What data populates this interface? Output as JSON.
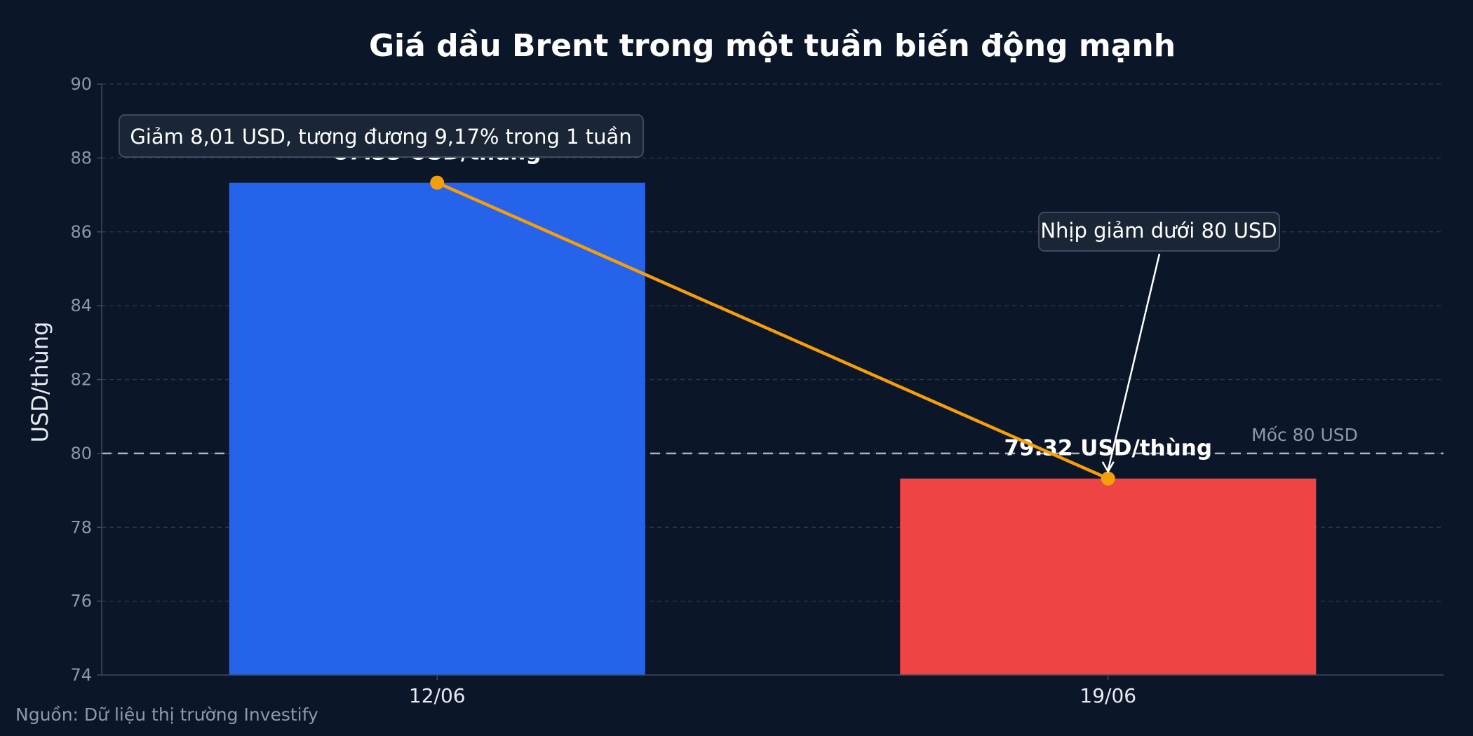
{
  "chart_data": {
    "type": "bar",
    "title": "Giá dầu Brent trong một tuần biến động mạnh",
    "ylabel": "USD/thùng",
    "xlabel": "",
    "categories": [
      "12/06",
      "19/06"
    ],
    "values": [
      87.33,
      79.32
    ],
    "bar_colors": [
      "#2563eb",
      "#ef4444"
    ],
    "value_labels": [
      "87.33 USD/thùng",
      "79.32 USD/thùng"
    ],
    "ylim": [
      74,
      90
    ],
    "yticks": [
      74,
      76,
      78,
      80,
      82,
      84,
      86,
      88,
      90
    ],
    "grid": true,
    "trend_line": {
      "color": "#f59e0b",
      "values": [
        87.33,
        79.32
      ]
    },
    "reference_line": {
      "value": 80,
      "label": "Mốc 80 USD",
      "color": "#c8cdd6"
    },
    "annotations": [
      {
        "text": "Giảm 8,01 USD, tương đương 9,17% trong 1 tuần"
      },
      {
        "text": "Nhịp giảm dưới 80 USD",
        "target_category": "19/06",
        "target_value": 79.32
      }
    ],
    "source": "Nguồn: Dữ liệu thị trường Investify"
  },
  "colors": {
    "background": "#0b1628",
    "grid": "#2a3a52",
    "axis": "#3a4a62",
    "annotation_box": "#1a2536",
    "annotation_border": "#3d4b60"
  }
}
